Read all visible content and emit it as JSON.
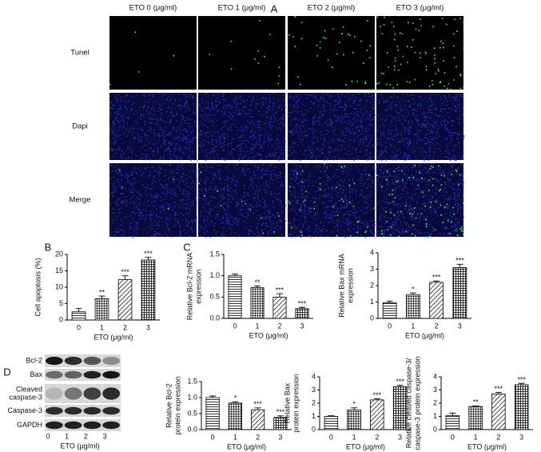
{
  "panel_labels": [
    "A",
    "B",
    "C",
    "D"
  ],
  "panel_a": {
    "columns": [
      "ETO 0 (μg/ml)",
      "ETO 1 (μg/ml)",
      "ETO 2 (μg/ml)",
      "ETO 3 (μg/ml)"
    ],
    "rows": [
      "Tunel",
      "Dapi",
      "Merge"
    ]
  },
  "western_blot": {
    "proteins": [
      [
        "Bcl-2"
      ],
      [
        "Bax"
      ],
      [
        "Cleaved",
        "caspase-3"
      ],
      [
        "Caspase-3"
      ],
      [
        "GAPDH"
      ]
    ],
    "categories": [
      "0",
      "1",
      "2",
      "3"
    ],
    "xlabel": "ETO (μg/ml)"
  },
  "chart_data": [
    {
      "type": "bar",
      "ylabel": [
        "Cell apoptosis (%)"
      ],
      "xlabel": "ETO (μg/ml)",
      "categories": [
        "0",
        "1",
        "2",
        "3"
      ],
      "values": [
        2.5,
        6.5,
        12.3,
        18.3
      ],
      "errors": [
        1.0,
        0.8,
        1.2,
        0.8
      ],
      "ylim": [
        0,
        20
      ],
      "yticks": [
        0,
        5,
        10,
        15,
        20
      ],
      "annotations": [
        {
          "category": "1",
          "text": "**"
        },
        {
          "category": "2",
          "text": "***"
        },
        {
          "category": "3",
          "text": "***"
        }
      ]
    },
    {
      "type": "bar",
      "ylabel": [
        "Relative Bcl-2 mRNA",
        "expression"
      ],
      "xlabel": "ETO (μg/ml)",
      "categories": [
        "0",
        "1",
        "2",
        "3"
      ],
      "values": [
        1.0,
        0.72,
        0.5,
        0.23
      ],
      "errors": [
        0.04,
        0.04,
        0.08,
        0.03
      ],
      "ylim": [
        0,
        1.5
      ],
      "yticks": [
        {
          "value": 0,
          "label": "0.0"
        },
        0.5,
        {
          "value": 1,
          "label": "1.0"
        },
        1.5
      ],
      "annotations": [
        {
          "category": "1",
          "text": "**"
        },
        {
          "category": "2",
          "text": "***"
        },
        {
          "category": "3",
          "text": "***"
        }
      ]
    },
    {
      "type": "bar",
      "ylabel": [
        "Relative Bax mRNA",
        "expression"
      ],
      "xlabel": "ETO (μg/ml)",
      "categories": [
        "0",
        "1",
        "2",
        "3"
      ],
      "values": [
        0.95,
        1.45,
        2.2,
        3.1
      ],
      "errors": [
        0.1,
        0.1,
        0.08,
        0.2
      ],
      "ylim": [
        0,
        4
      ],
      "yticks": [
        0,
        1,
        2,
        3,
        4
      ],
      "annotations": [
        {
          "category": "1",
          "text": "*"
        },
        {
          "category": "2",
          "text": "***"
        },
        {
          "category": "3",
          "text": "***"
        }
      ]
    },
    {
      "type": "bar",
      "ylabel": [
        "Relative Bcl-2",
        "protein expression"
      ],
      "xlabel": "ETO (μg/ml)",
      "categories": [
        "0",
        "1",
        "2",
        "3"
      ],
      "values": [
        1.0,
        0.83,
        0.62,
        0.38
      ],
      "errors": [
        0.05,
        0.04,
        0.06,
        0.05
      ],
      "ylim": [
        0,
        1.5
      ],
      "yticks": [
        {
          "value": 0,
          "label": "0.0"
        },
        0.5,
        {
          "value": 1,
          "label": "1.0"
        },
        1.5
      ],
      "annotations": [
        {
          "category": "1",
          "text": "*"
        },
        {
          "category": "2",
          "text": "***"
        },
        {
          "category": "3",
          "text": "***"
        }
      ]
    },
    {
      "type": "bar",
      "ylabel": [
        "Relative Bax",
        "protein expression"
      ],
      "xlabel": "ETO (μg/ml)",
      "categories": [
        "0",
        "1",
        "2",
        "3"
      ],
      "values": [
        1.0,
        1.5,
        2.25,
        3.25
      ],
      "errors": [
        0.05,
        0.15,
        0.08,
        0.12
      ],
      "ylim": [
        0,
        4
      ],
      "yticks": [
        0,
        1,
        2,
        3,
        4
      ],
      "annotations": [
        {
          "category": "1",
          "text": "*"
        },
        {
          "category": "2",
          "text": "***"
        },
        {
          "category": "3",
          "text": "***"
        }
      ]
    },
    {
      "type": "bar",
      "ylabel": [
        "Relative cleaved caspase-3/",
        "caspase-3 protein expression"
      ],
      "xlabel": "ETO (μg/ml)",
      "categories": [
        "0",
        "1",
        "2",
        "3"
      ],
      "values": [
        1.05,
        1.75,
        2.7,
        3.4
      ],
      "errors": [
        0.2,
        0.05,
        0.12,
        0.1
      ],
      "ylim": [
        0,
        4
      ],
      "yticks": [
        0,
        1,
        2,
        3,
        4
      ],
      "annotations": [
        {
          "category": "1",
          "text": "**"
        },
        {
          "category": "2",
          "text": "***"
        },
        {
          "category": "3",
          "text": "***"
        }
      ]
    }
  ]
}
